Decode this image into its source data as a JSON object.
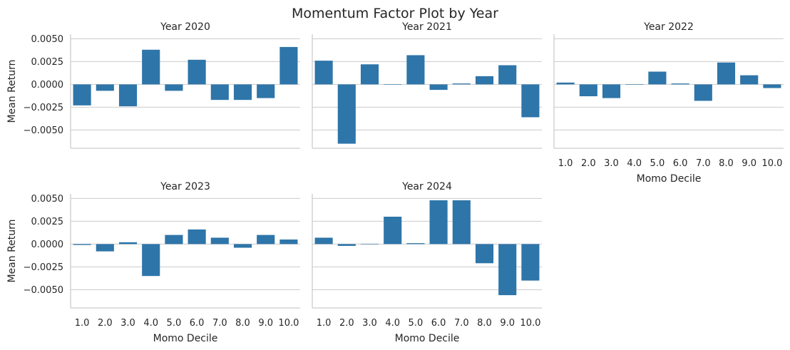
{
  "chart_data": {
    "type": "bar",
    "title": "Momentum Factor Plot by Year",
    "xlabel": "Momo Decile",
    "ylabel": "Mean Return",
    "categories": [
      "1.0",
      "2.0",
      "3.0",
      "4.0",
      "5.0",
      "6.0",
      "7.0",
      "8.0",
      "9.0",
      "10.0"
    ],
    "yticks": [
      0.005,
      0.0025,
      0.0,
      -0.0025,
      -0.005
    ],
    "ytick_labels": [
      "0.0050",
      "0.0025",
      "0.0000",
      "−0.0025",
      "−0.0050"
    ],
    "ylim": [
      -0.007,
      0.0055
    ],
    "grid": "horizontal",
    "color": "#2e75a9",
    "facets": [
      {
        "title": "Year 2020",
        "values": [
          -0.0023,
          -0.0007,
          -0.0024,
          0.0038,
          -0.0007,
          0.0027,
          -0.0017,
          -0.0017,
          -0.0015,
          0.0041
        ]
      },
      {
        "title": "Year 2021",
        "values": [
          0.0026,
          -0.0065,
          0.0022,
          0.0,
          0.0032,
          -0.0006,
          0.0001,
          0.0009,
          0.0021,
          -0.0036
        ]
      },
      {
        "title": "Year 2022",
        "values": [
          0.0002,
          -0.0013,
          -0.0015,
          0.0,
          0.0014,
          0.0001,
          -0.0018,
          0.0024,
          0.001,
          -0.0004
        ]
      },
      {
        "title": "Year 2023",
        "values": [
          -0.0001,
          -0.0008,
          0.0002,
          -0.0035,
          0.001,
          0.0016,
          0.0007,
          -0.0004,
          0.001,
          0.0005
        ]
      },
      {
        "title": "Year 2024",
        "values": [
          0.0007,
          -0.0002,
          0.0,
          0.003,
          0.0001,
          0.0048,
          0.0048,
          -0.0021,
          -0.0056,
          -0.004
        ]
      }
    ]
  }
}
